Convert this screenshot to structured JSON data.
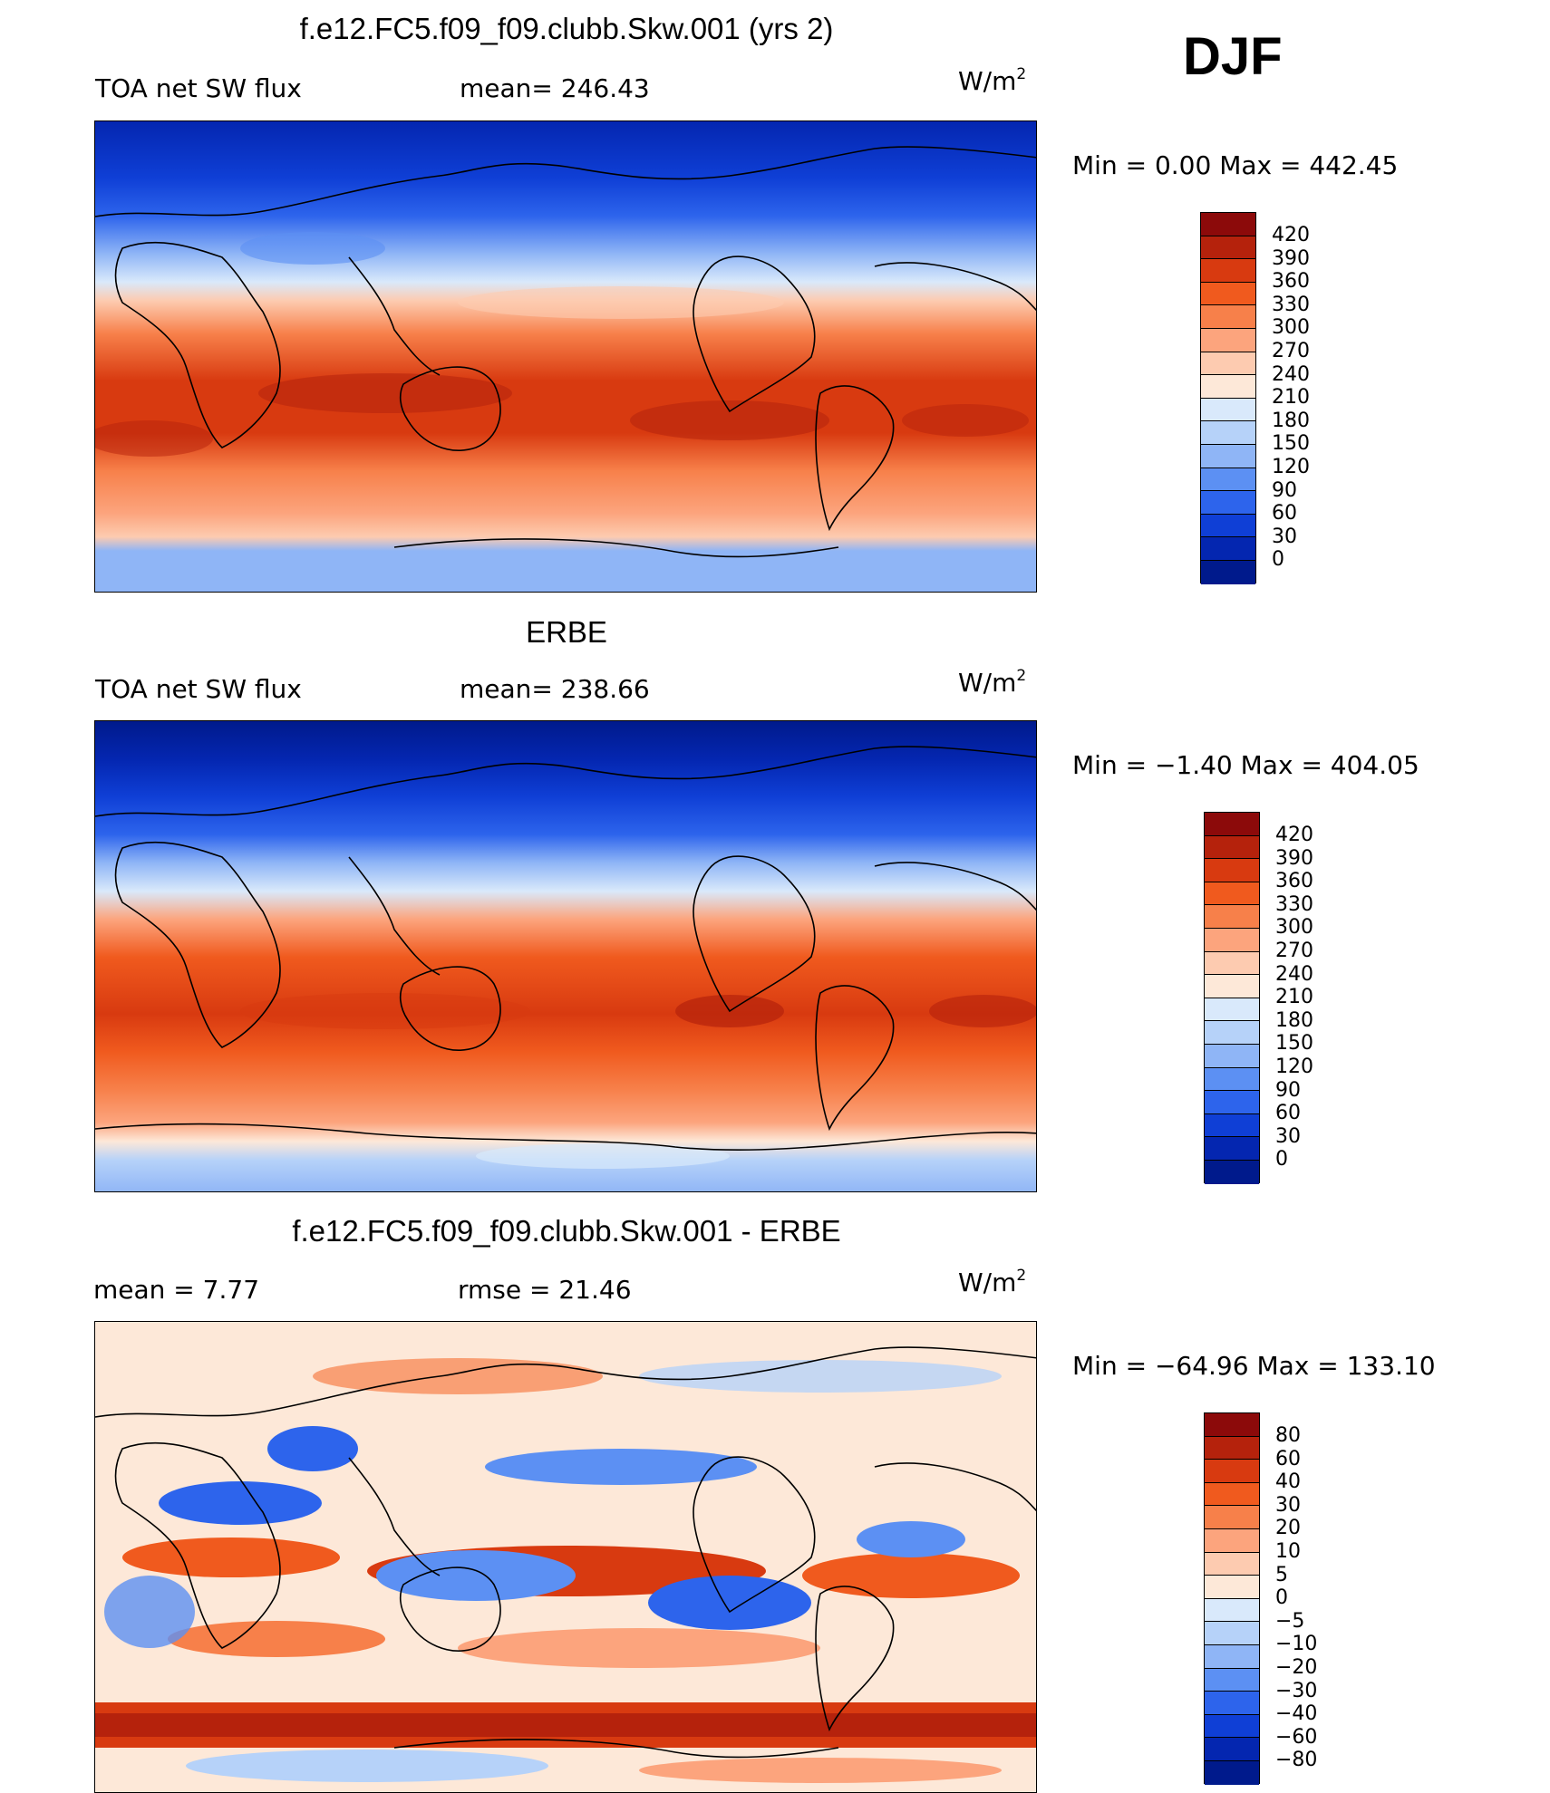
{
  "season": "DJF",
  "panels": [
    {
      "title": "f.e12.FC5.f09_f09.clubb.Skw.001 (yrs 2)",
      "left_label": "TOA net SW flux",
      "stat": "mean=  246.43",
      "unit": "W/m",
      "unit_exp": "2",
      "minmax": "Min  =    0.00  Max  =  442.45",
      "ticks": [
        "420",
        "390",
        "360",
        "330",
        "300",
        "270",
        "240",
        "210",
        "180",
        "150",
        "120",
        "90",
        "60",
        "30",
        "0"
      ]
    },
    {
      "title": "ERBE",
      "left_label": "TOA net SW flux",
      "stat": "mean=  238.66",
      "unit": "W/m",
      "unit_exp": "2",
      "minmax": "Min  =   −1.40  Max  =  404.05",
      "ticks": [
        "420",
        "390",
        "360",
        "330",
        "300",
        "270",
        "240",
        "210",
        "180",
        "150",
        "120",
        "90",
        "60",
        "30",
        "0"
      ]
    },
    {
      "title": "f.e12.FC5.f09_f09.clubb.Skw.001 - ERBE",
      "left_label": "mean  =      7.77",
      "stat": "rmse  =    21.46",
      "unit": "W/m",
      "unit_exp": "2",
      "minmax": "Min  =  −64.96  Max  =  133.10",
      "ticks": [
        "80",
        "60",
        "40",
        "30",
        "20",
        "10",
        "5",
        "0",
        "−5",
        "−10",
        "−20",
        "−30",
        "−40",
        "−60",
        "−80"
      ]
    }
  ],
  "colors": {
    "flux_scale": [
      "#8c0a0a",
      "#b5220c",
      "#d83a10",
      "#f05a1e",
      "#f7804a",
      "#fca47d",
      "#fdcbb0",
      "#fde8d8",
      "#d9e9fb",
      "#b6d2f9",
      "#8fb5f6",
      "#5c90f3",
      "#2d64ec",
      "#0f3fd6",
      "#0426b0",
      "#001a8c"
    ],
    "diff_scale": [
      "#8c0a0a",
      "#b5220c",
      "#d83a10",
      "#f05a1e",
      "#f7804a",
      "#fca47d",
      "#fdcbb0",
      "#fde8d8",
      "#d9e9fb",
      "#b6d2f9",
      "#8fb5f6",
      "#5c90f3",
      "#2d64ec",
      "#0f3fd6",
      "#0426b0",
      "#001a8c"
    ]
  }
}
